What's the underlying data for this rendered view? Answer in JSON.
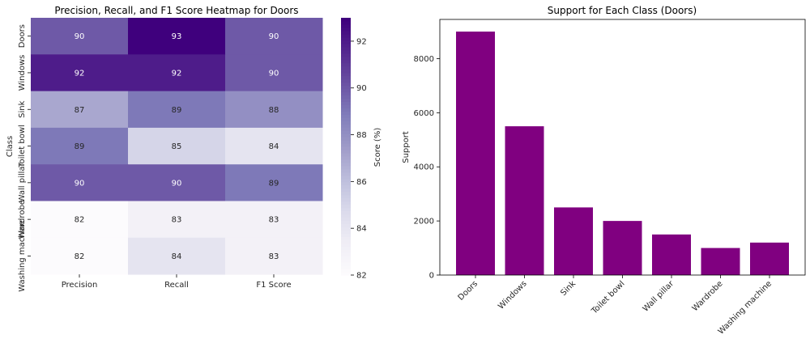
{
  "chart_data": [
    {
      "type": "heatmap",
      "title": "Precision, Recall, and F1 Score Heatmap for Doors",
      "xlabel": "",
      "ylabel": "Class",
      "columns": [
        "Precision",
        "Recall",
        "F1 Score"
      ],
      "rows": [
        "Doors",
        "Windows",
        "Sink",
        "Toilet bowl",
        "Wall pillar",
        "Wardrobe",
        "Washing machine"
      ],
      "values": [
        [
          90,
          93,
          90
        ],
        [
          92,
          92,
          90
        ],
        [
          87,
          89,
          88
        ],
        [
          89,
          85,
          84
        ],
        [
          90,
          90,
          89
        ],
        [
          82,
          83,
          83
        ],
        [
          82,
          84,
          83
        ]
      ],
      "colorbar": {
        "label": "Score (%)",
        "range": [
          82,
          93
        ],
        "ticks": [
          "82",
          "84",
          "86",
          "88",
          "90",
          "92"
        ],
        "colormap": "Purples"
      }
    },
    {
      "type": "bar",
      "title": "Support for Each Class (Doors)",
      "xlabel": "",
      "ylabel": "Support",
      "categories": [
        "Doors",
        "Windows",
        "Sink",
        "Toilet bowl",
        "Wall pillar",
        "Wardrobe",
        "Washing machine"
      ],
      "values": [
        9000,
        5500,
        2500,
        2000,
        1500,
        1000,
        1200
      ],
      "ylim": [
        0,
        9450
      ],
      "yticks": [
        "0",
        "2000",
        "4000",
        "6000",
        "8000"
      ],
      "bar_color": "#800080"
    }
  ]
}
